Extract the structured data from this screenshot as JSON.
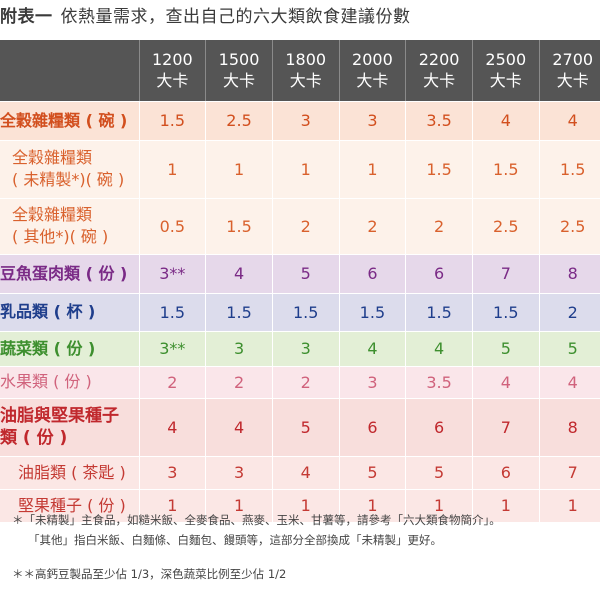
{
  "title": {
    "prefix": "附表一",
    "text": "依熱量需求，查出自己的六大類飲食建議份數"
  },
  "table": {
    "headers": [
      {
        "cal": "1200",
        "unit": "大卡"
      },
      {
        "cal": "1500",
        "unit": "大卡"
      },
      {
        "cal": "1800",
        "unit": "大卡"
      },
      {
        "cal": "2000",
        "unit": "大卡"
      },
      {
        "cal": "2200",
        "unit": "大卡"
      },
      {
        "cal": "2500",
        "unit": "大卡"
      },
      {
        "cal": "2700",
        "unit": "大卡"
      }
    ],
    "rows": [
      {
        "label": [
          "全穀雜糧類 ( 碗 )"
        ],
        "values": [
          "1.5",
          "2.5",
          "3",
          "3",
          "3.5",
          "4",
          "4"
        ]
      },
      {
        "label": [
          "全穀雜糧類",
          "( 未精製*)( 碗 )"
        ],
        "values": [
          "1",
          "1",
          "1",
          "1",
          "1.5",
          "1.5",
          "1.5"
        ]
      },
      {
        "label": [
          "全穀雜糧類",
          "( 其他*)( 碗 )"
        ],
        "values": [
          "0.5",
          "1.5",
          "2",
          "2",
          "2",
          "2.5",
          "2.5"
        ]
      },
      {
        "label": [
          "豆魚蛋肉類 ( 份 )"
        ],
        "values": [
          "3**",
          "4",
          "5",
          "6",
          "6",
          "7",
          "8"
        ]
      },
      {
        "label": [
          "乳品類 ( 杯 )"
        ],
        "values": [
          "1.5",
          "1.5",
          "1.5",
          "1.5",
          "1.5",
          "1.5",
          "2"
        ]
      },
      {
        "label": [
          "蔬菜類 ( 份 )"
        ],
        "values": [
          "3**",
          "3",
          "3",
          "4",
          "4",
          "5",
          "5"
        ]
      },
      {
        "label": [
          "水果類 ( 份 )"
        ],
        "values": [
          "2",
          "2",
          "2",
          "3",
          "3.5",
          "4",
          "4"
        ]
      },
      {
        "label": [
          "油脂與堅果種子",
          "類 ( 份 )"
        ],
        "values": [
          "4",
          "4",
          "5",
          "6",
          "6",
          "7",
          "8"
        ]
      },
      {
        "label": [
          "油脂類 ( 茶匙 )"
        ],
        "values": [
          "3",
          "3",
          "4",
          "5",
          "5",
          "6",
          "7"
        ]
      },
      {
        "label": [
          "堅果種子 ( 份 )"
        ],
        "values": [
          "1",
          "1",
          "1",
          "1",
          "1",
          "1",
          "1"
        ]
      }
    ]
  },
  "notes": {
    "line1": "＊「未精製」主食品，如糙米飯、全麥食品、燕麥、玉米、甘薯等，請參考「六大類食物簡介」。",
    "line2": "「其他」指白米飯、白麵條、白麵包、饅頭等，這部分全部換成「未精製」更好。",
    "line3": "＊＊高鈣豆製品至少佔 1/3，深色蔬菜比例至少佔 1/2"
  },
  "colors": {
    "header_bg": "#555555",
    "grain": "#d24f1e",
    "meat": "#7a2a86",
    "dairy": "#1f3e8c",
    "vegetable": "#3d8f2e",
    "fruit": "#d0627c",
    "fat": "#c0282d"
  }
}
